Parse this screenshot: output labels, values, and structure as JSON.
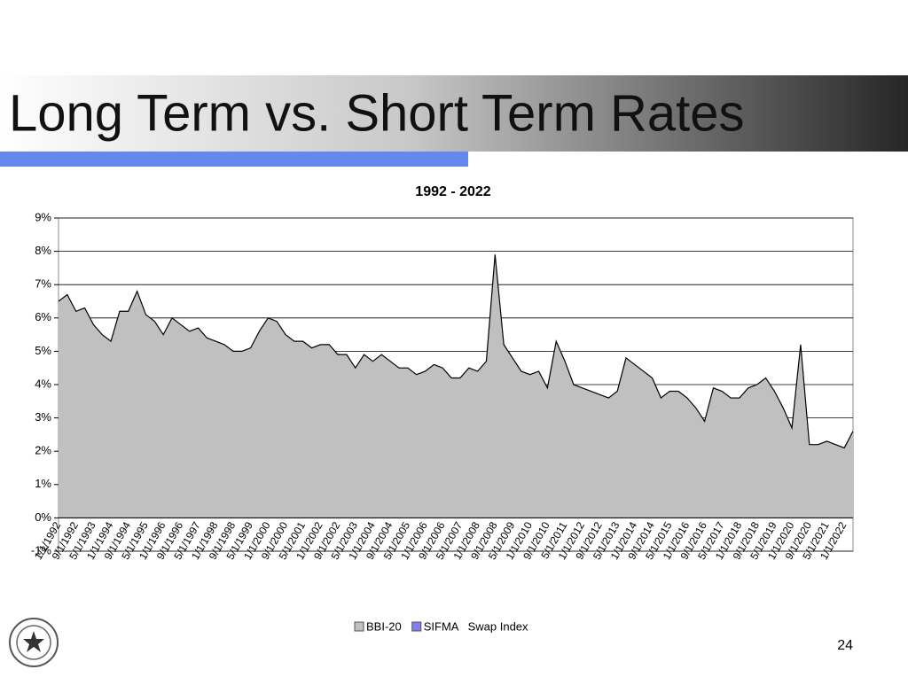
{
  "slide": {
    "title": "Long Term vs. Short Term Rates",
    "page_number": "24"
  },
  "chart_data": {
    "type": "area",
    "title": "1992 - 2022",
    "categories": [
      "1/1/1992",
      null,
      "9/1/1992",
      null,
      "5/1/1993",
      null,
      "1/1/1994",
      null,
      "9/1/1994",
      null,
      "5/1/1995",
      null,
      "1/1/1996",
      null,
      "9/1/1996",
      null,
      "5/1/1997",
      null,
      "1/1/1998",
      null,
      "9/1/1998",
      null,
      "5/1/1999",
      null,
      "1/1/2000",
      null,
      "9/1/2000",
      null,
      "5/1/2001",
      null,
      "1/1/2002",
      null,
      "9/1/2002",
      null,
      "5/1/2003",
      null,
      "1/1/2004",
      null,
      "9/1/2004",
      null,
      "5/1/2005",
      null,
      "1/1/2006",
      null,
      "9/1/2006",
      null,
      "5/1/2007",
      null,
      "1/1/2008",
      null,
      "9/1/2008",
      null,
      "5/1/2009",
      null,
      "1/1/2010",
      null,
      "9/1/2010",
      null,
      "5/1/2011",
      null,
      "1/1/2012",
      null,
      "9/1/2012",
      null,
      "5/1/2013",
      null,
      "1/1/2014",
      null,
      "9/1/2014",
      null,
      "5/1/2015",
      null,
      "1/1/2016",
      null,
      "9/1/2016",
      null,
      "5/1/2017",
      null,
      "1/1/2018",
      null,
      "9/1/2018",
      null,
      "5/1/2019",
      null,
      "1/1/2020",
      null,
      "9/1/2020",
      null,
      "5/1/2021",
      null,
      "1/1/2022",
      null
    ],
    "series": [
      {
        "name": "BBI-20",
        "color": "#c0c0c0",
        "values": [
          6.5,
          6.7,
          6.2,
          6.3,
          5.8,
          5.5,
          5.3,
          6.2,
          6.2,
          6.8,
          6.1,
          5.9,
          5.5,
          6.0,
          5.8,
          5.6,
          5.7,
          5.4,
          5.3,
          5.2,
          5.0,
          5.0,
          5.1,
          5.6,
          6.0,
          5.9,
          5.5,
          5.3,
          5.3,
          5.1,
          5.2,
          5.2,
          4.9,
          4.9,
          4.5,
          4.9,
          4.7,
          4.9,
          4.7,
          4.5,
          4.5,
          4.3,
          4.4,
          4.6,
          4.5,
          4.2,
          4.2,
          4.5,
          4.4,
          4.7,
          7.9,
          5.2,
          4.8,
          4.4,
          4.3,
          4.4,
          3.9,
          5.3,
          4.7,
          4.0,
          3.9,
          3.8,
          3.7,
          3.6,
          3.8,
          4.8,
          4.6,
          4.4,
          4.2,
          3.6,
          3.8,
          3.8,
          3.6,
          3.3,
          2.9,
          3.9,
          3.8,
          3.6,
          3.6,
          3.9,
          4.0,
          4.2,
          3.8,
          3.3,
          2.7,
          5.2,
          2.2,
          2.2,
          2.3,
          2.2,
          2.1,
          2.6
        ]
      },
      {
        "name": "SIFMA   Swap Index",
        "color": "#8080f0",
        "values": [
          null,
          null,
          null,
          null,
          null,
          null,
          null,
          null,
          null,
          null,
          null,
          null,
          null,
          null,
          null,
          null,
          null,
          null,
          null,
          null,
          null,
          null,
          null,
          null,
          null,
          null,
          null,
          null,
          null,
          null,
          null,
          null,
          null,
          null,
          null,
          null,
          null,
          null,
          null,
          null,
          null,
          null,
          null,
          null,
          null,
          null,
          null,
          null,
          null,
          null,
          null,
          null,
          null,
          null,
          null,
          null,
          null,
          null,
          null,
          null,
          null,
          null,
          null,
          null,
          null,
          null,
          null,
          null,
          null,
          null,
          null,
          null,
          null,
          null,
          null,
          null,
          null,
          null,
          null,
          null,
          null,
          null,
          null,
          null,
          null,
          null,
          null,
          null,
          null,
          null,
          null,
          null
        ]
      }
    ],
    "ylim": [
      -1,
      9
    ],
    "yticks": [
      {
        "value": -1,
        "label": "-1%"
      },
      {
        "value": 0,
        "label": "0%"
      },
      {
        "value": 1,
        "label": "1%"
      },
      {
        "value": 2,
        "label": "2%"
      },
      {
        "value": 3,
        "label": "3%"
      },
      {
        "value": 4,
        "label": "4%"
      },
      {
        "value": 5,
        "label": "5%"
      },
      {
        "value": 6,
        "label": "6%"
      },
      {
        "value": 7,
        "label": "7%"
      },
      {
        "value": 8,
        "label": "8%"
      },
      {
        "value": 9,
        "label": "9%"
      }
    ],
    "grid": true,
    "legend": "bottom"
  }
}
